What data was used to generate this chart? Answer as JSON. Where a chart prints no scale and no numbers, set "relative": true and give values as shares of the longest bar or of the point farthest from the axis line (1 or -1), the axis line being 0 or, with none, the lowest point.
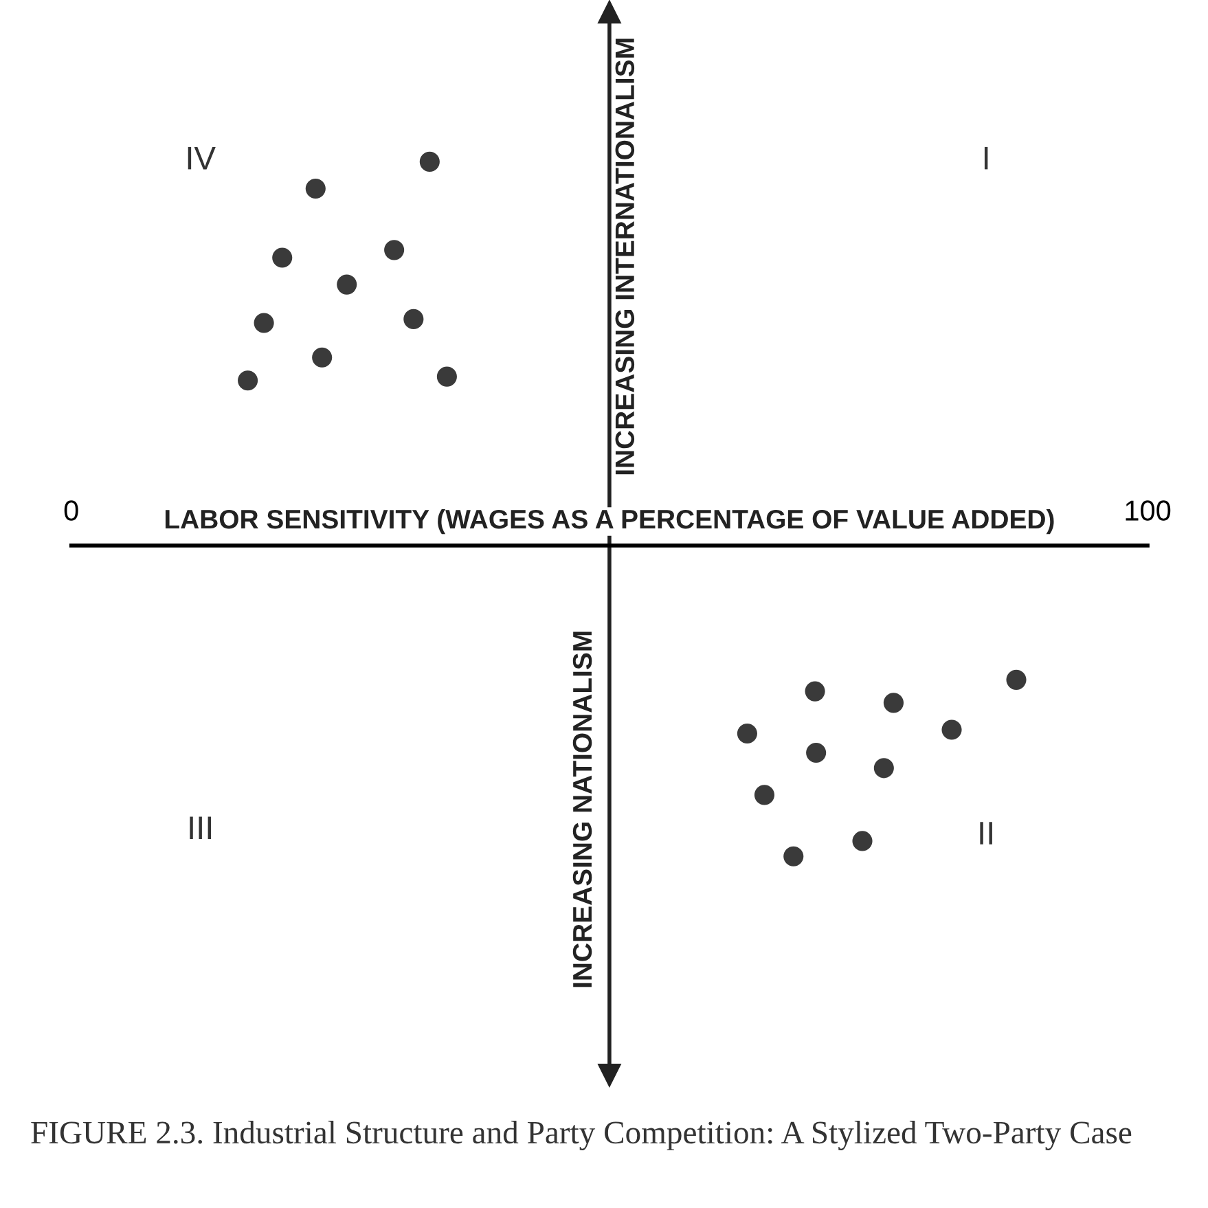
{
  "chart_data": {
    "type": "scatter",
    "relative": true,
    "title": "FIGURE 2.3. Industrial Structure and Party Competition: A Stylized Two-Party Case",
    "xlabel": "LABOR SENSITIVITY (WAGES AS A PERCENTAGE OF VALUE ADDED)",
    "ylabel": "INCREASING INTERNATIONALISM",
    "xlim": [
      0,
      100
    ],
    "xticks": [
      0,
      100
    ],
    "ref_lines": [
      {
        "axis": "x",
        "value": 50,
        "color": "#222222"
      }
    ],
    "marker": "circle",
    "grid": false,
    "legend": false,
    "series": [
      {
        "color": "#3a3a3a",
        "x": [
          22.7,
          33.3,
          19.6,
          30.0,
          25.6,
          17.9,
          31.8,
          23.3,
          16.4,
          34.9,
          69.1,
          87.8,
          76.4,
          62.8,
          81.8,
          69.2,
          75.5,
          64.4,
          73.5,
          67.1
        ],
        "values": [
          0.93,
          1.0,
          0.75,
          0.77,
          0.68,
          0.58,
          0.59,
          0.49,
          0.43,
          0.44,
          -0.38,
          -0.35,
          -0.41,
          -0.49,
          -0.48,
          -0.54,
          -0.58,
          -0.65,
          -0.77,
          -0.81
        ]
      }
    ],
    "annotations": [
      "IV",
      "I",
      "III",
      "II",
      "INCREASING NATIONALISM"
    ]
  }
}
